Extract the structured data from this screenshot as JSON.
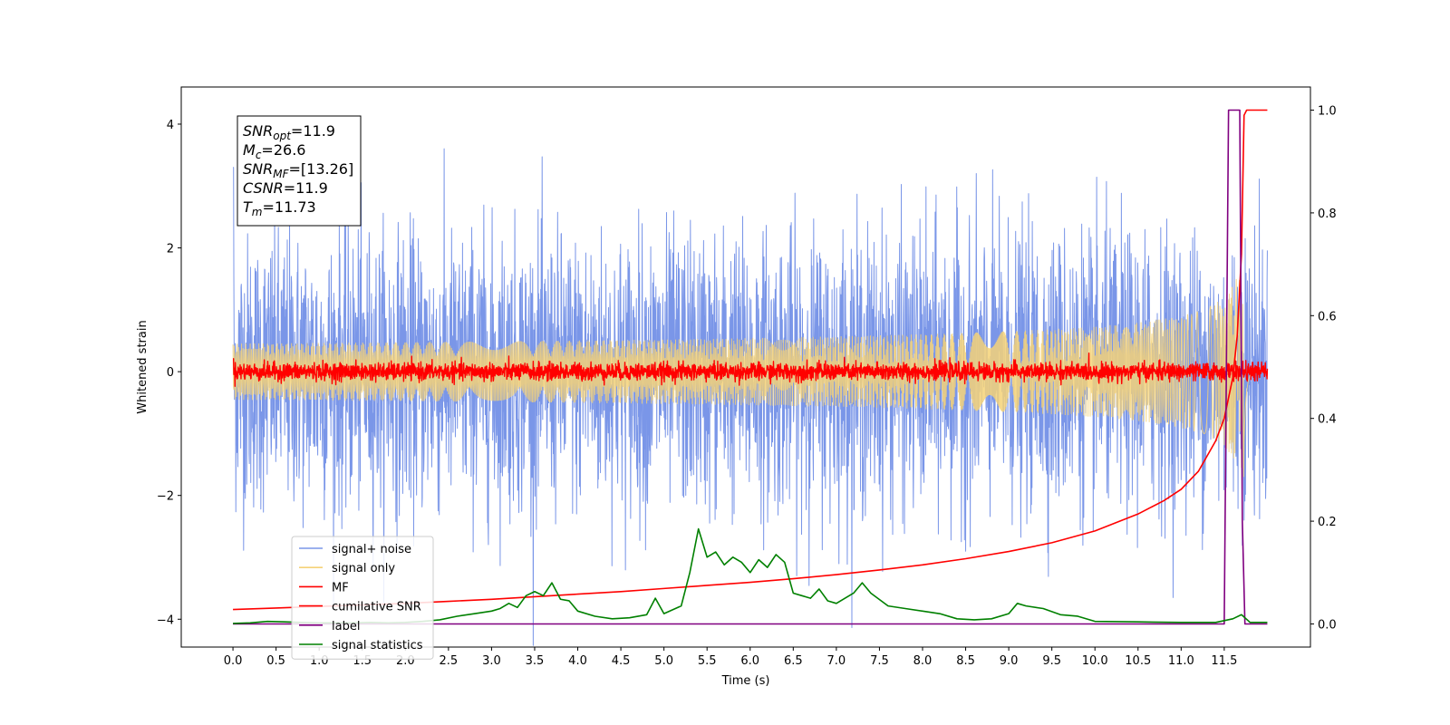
{
  "chart_data": {
    "type": "line",
    "xlabel": "Time (s)",
    "ylabel": "Whitened strain",
    "xlim": [
      -0.6,
      12.5
    ],
    "ylim": [
      -4.45,
      4.6
    ],
    "y2lim": [
      -0.045,
      1.045
    ],
    "xticks": [
      "0.0",
      "0.5",
      "1.0",
      "1.5",
      "2.0",
      "2.5",
      "3.0",
      "3.5",
      "4.0",
      "4.5",
      "5.0",
      "5.5",
      "6.0",
      "6.5",
      "7.0",
      "7.5",
      "8.0",
      "8.5",
      "9.0",
      "9.5",
      "10.0",
      "10.5",
      "11.0",
      "11.5"
    ],
    "yticks": [
      "4",
      "2",
      "0",
      "−2",
      "−4"
    ],
    "y2ticks": [
      "1.0",
      "0.8",
      "0.6",
      "0.4",
      "0.2",
      "0.0"
    ],
    "annotation": [
      {
        "sym": "SNR",
        "sub": "opt",
        "val": "=11.9"
      },
      {
        "sym": "M",
        "sub": "c",
        "val": "=26.6"
      },
      {
        "sym": "SNR",
        "sub": "MF",
        "val": "=[13.26]"
      },
      {
        "sym": "CSNR",
        "sub": "",
        "val": "=11.9"
      },
      {
        "sym": "T",
        "sub": "m",
        "val": "=11.73"
      }
    ],
    "legend_position": "lower-left",
    "series": [
      {
        "name": "signal+ noise",
        "color": "#7a96e8",
        "axis": "left",
        "kind": "noise",
        "time_range": [
          0,
          12.0
        ],
        "std": 1.1
      },
      {
        "name": "signal only",
        "color": "#f5d278",
        "axis": "left",
        "kind": "chirp",
        "time_range": [
          0,
          12.0
        ],
        "peak_amplitude": 1.7,
        "merger_time": 11.73
      },
      {
        "name": "MF",
        "color": "#ff0000",
        "axis": "left",
        "kind": "noise",
        "time_range": [
          0,
          12.0
        ],
        "std": 0.07
      },
      {
        "name": "cumilative SNR",
        "color": "#ff0000",
        "axis": "right",
        "points": [
          [
            0.0,
            0.028
          ],
          [
            0.5,
            0.031
          ],
          [
            1.0,
            0.034
          ],
          [
            1.5,
            0.037
          ],
          [
            2.0,
            0.04
          ],
          [
            2.5,
            0.044
          ],
          [
            3.0,
            0.048
          ],
          [
            3.5,
            0.053
          ],
          [
            4.0,
            0.058
          ],
          [
            4.5,
            0.063
          ],
          [
            5.0,
            0.069
          ],
          [
            5.5,
            0.075
          ],
          [
            6.0,
            0.081
          ],
          [
            6.5,
            0.088
          ],
          [
            7.0,
            0.096
          ],
          [
            7.5,
            0.105
          ],
          [
            8.0,
            0.115
          ],
          [
            8.5,
            0.127
          ],
          [
            9.0,
            0.141
          ],
          [
            9.5,
            0.158
          ],
          [
            10.0,
            0.181
          ],
          [
            10.5,
            0.214
          ],
          [
            10.8,
            0.24
          ],
          [
            11.0,
            0.262
          ],
          [
            11.2,
            0.297
          ],
          [
            11.4,
            0.356
          ],
          [
            11.5,
            0.4
          ],
          [
            11.6,
            0.48
          ],
          [
            11.65,
            0.56
          ],
          [
            11.7,
            0.72
          ],
          [
            11.73,
            0.99
          ],
          [
            11.76,
            1.0
          ],
          [
            12.0,
            1.0
          ]
        ]
      },
      {
        "name": "label",
        "color": "#800080",
        "axis": "right",
        "points": [
          [
            0.0,
            0.0
          ],
          [
            11.45,
            0.0
          ],
          [
            11.5,
            0.0
          ],
          [
            11.55,
            1.0
          ],
          [
            11.68,
            1.0
          ],
          [
            11.71,
            0.2
          ],
          [
            11.74,
            0.0
          ],
          [
            12.0,
            0.0
          ]
        ]
      },
      {
        "name": "signal statistics",
        "color": "#008000",
        "axis": "right",
        "points": [
          [
            0.0,
            0.001
          ],
          [
            0.2,
            0.002
          ],
          [
            0.4,
            0.005
          ],
          [
            0.6,
            0.004
          ],
          [
            0.8,
            0.003
          ],
          [
            1.0,
            0.002
          ],
          [
            1.2,
            0.002
          ],
          [
            1.4,
            0.002
          ],
          [
            1.6,
            0.003
          ],
          [
            1.8,
            0.002
          ],
          [
            2.0,
            0.003
          ],
          [
            2.2,
            0.005
          ],
          [
            2.4,
            0.008
          ],
          [
            2.6,
            0.015
          ],
          [
            2.8,
            0.02
          ],
          [
            3.0,
            0.025
          ],
          [
            3.1,
            0.03
          ],
          [
            3.2,
            0.04
          ],
          [
            3.3,
            0.032
          ],
          [
            3.4,
            0.055
          ],
          [
            3.5,
            0.063
          ],
          [
            3.6,
            0.055
          ],
          [
            3.7,
            0.08
          ],
          [
            3.8,
            0.048
          ],
          [
            3.9,
            0.045
          ],
          [
            4.0,
            0.025
          ],
          [
            4.2,
            0.015
          ],
          [
            4.4,
            0.01
          ],
          [
            4.6,
            0.012
          ],
          [
            4.8,
            0.018
          ],
          [
            4.9,
            0.05
          ],
          [
            5.0,
            0.02
          ],
          [
            5.2,
            0.035
          ],
          [
            5.3,
            0.1
          ],
          [
            5.4,
            0.185
          ],
          [
            5.5,
            0.13
          ],
          [
            5.6,
            0.14
          ],
          [
            5.7,
            0.115
          ],
          [
            5.8,
            0.13
          ],
          [
            5.9,
            0.12
          ],
          [
            6.0,
            0.1
          ],
          [
            6.1,
            0.125
          ],
          [
            6.2,
            0.11
          ],
          [
            6.3,
            0.135
          ],
          [
            6.4,
            0.12
          ],
          [
            6.5,
            0.06
          ],
          [
            6.6,
            0.055
          ],
          [
            6.7,
            0.05
          ],
          [
            6.8,
            0.068
          ],
          [
            6.9,
            0.045
          ],
          [
            7.0,
            0.04
          ],
          [
            7.2,
            0.06
          ],
          [
            7.3,
            0.08
          ],
          [
            7.4,
            0.06
          ],
          [
            7.6,
            0.035
          ],
          [
            7.8,
            0.03
          ],
          [
            8.0,
            0.025
          ],
          [
            8.2,
            0.02
          ],
          [
            8.4,
            0.01
          ],
          [
            8.6,
            0.008
          ],
          [
            8.8,
            0.01
          ],
          [
            9.0,
            0.02
          ],
          [
            9.1,
            0.04
          ],
          [
            9.2,
            0.035
          ],
          [
            9.4,
            0.03
          ],
          [
            9.6,
            0.018
          ],
          [
            9.8,
            0.015
          ],
          [
            10.0,
            0.005
          ],
          [
            10.5,
            0.004
          ],
          [
            11.0,
            0.003
          ],
          [
            11.4,
            0.003
          ],
          [
            11.6,
            0.01
          ],
          [
            11.7,
            0.018
          ],
          [
            11.8,
            0.003
          ],
          [
            12.0,
            0.003
          ]
        ]
      }
    ]
  }
}
